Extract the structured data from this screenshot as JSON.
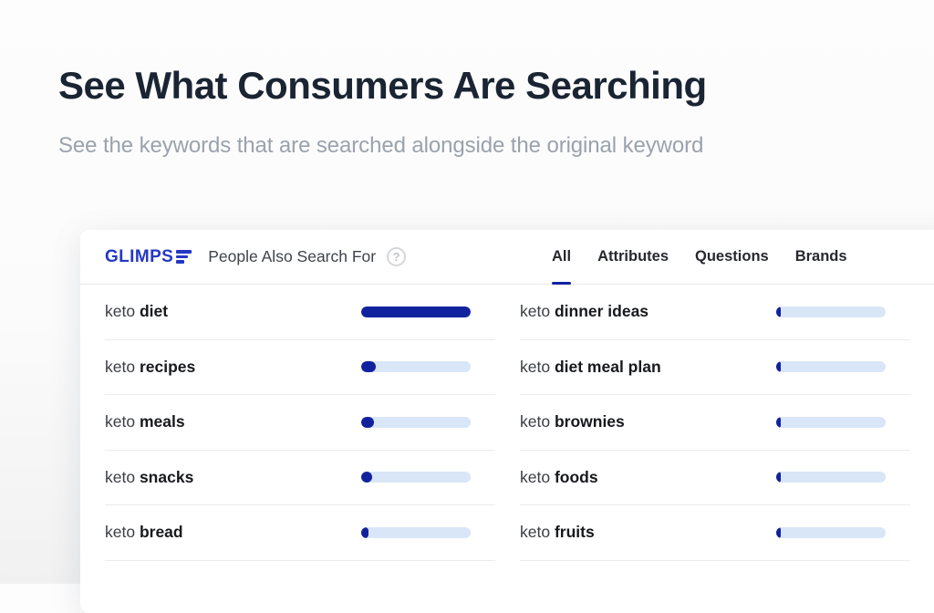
{
  "page": {
    "title": "See What Consumers Are Searching",
    "subtitle": "See the keywords that are searched alongside the original keyword"
  },
  "widget": {
    "brand_text": "GLIMPS",
    "title": "People Also Search For",
    "help_glyph": "?",
    "tabs": [
      {
        "label": "All",
        "active": true
      },
      {
        "label": "Attributes",
        "active": false
      },
      {
        "label": "Questions",
        "active": false
      },
      {
        "label": "Brands",
        "active": false
      }
    ]
  },
  "keywords": {
    "left": [
      {
        "prefix": "keto",
        "term": "diet",
        "value": 100
      },
      {
        "prefix": "keto",
        "term": "recipes",
        "value": 13
      },
      {
        "prefix": "keto",
        "term": "meals",
        "value": 12
      },
      {
        "prefix": "keto",
        "term": "snacks",
        "value": 10
      },
      {
        "prefix": "keto",
        "term": "bread",
        "value": 7
      }
    ],
    "right": [
      {
        "prefix": "keto",
        "term": "dinner ideas",
        "value": 4
      },
      {
        "prefix": "keto",
        "term": "diet meal plan",
        "value": 4
      },
      {
        "prefix": "keto",
        "term": "brownies",
        "value": 4
      },
      {
        "prefix": "keto",
        "term": "foods",
        "value": 4
      },
      {
        "prefix": "keto",
        "term": "fruits",
        "value": 4
      }
    ]
  },
  "colors": {
    "bar_fill": "#12229e",
    "bar_track": "#d9e6f7",
    "logo_blue": "#2438c4",
    "tab_underline": "#12229e"
  }
}
